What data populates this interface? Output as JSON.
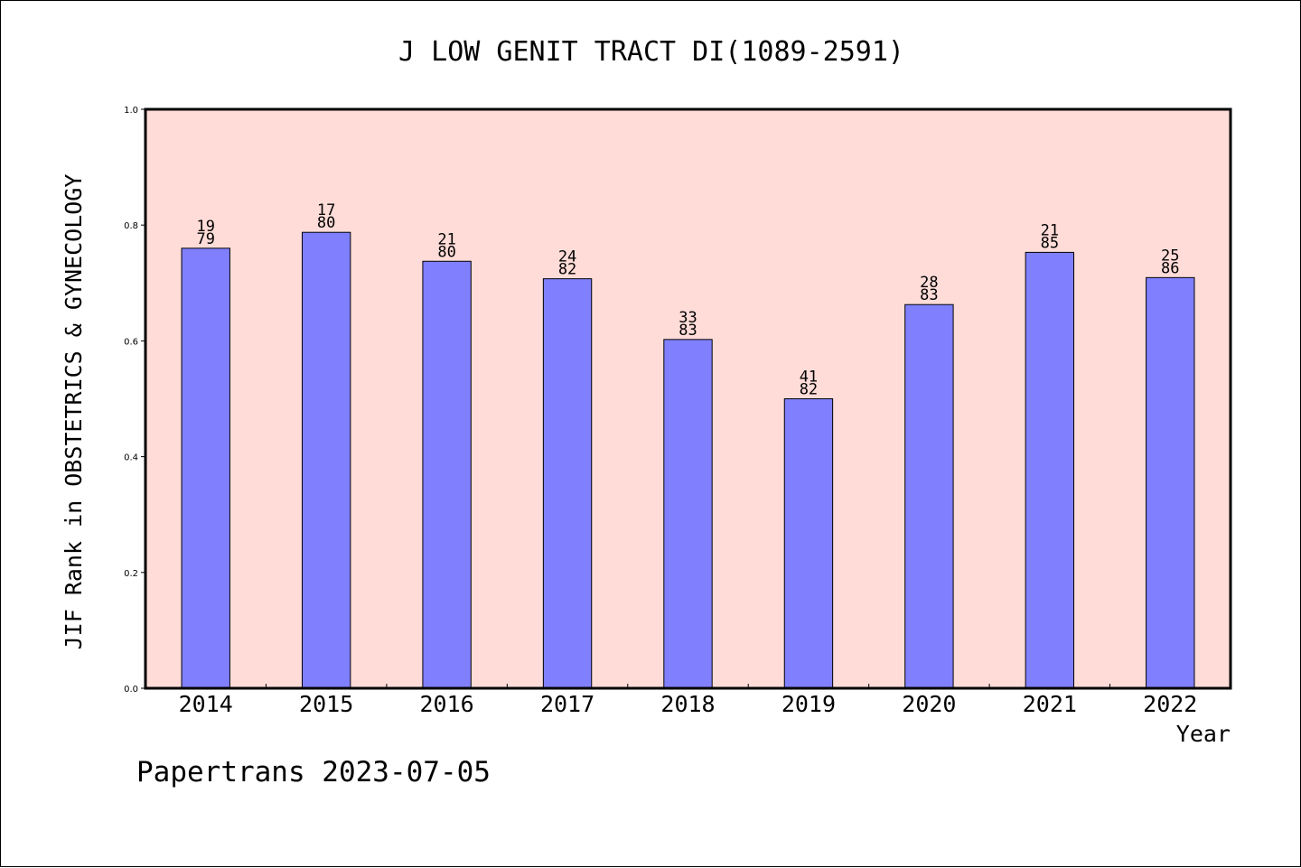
{
  "chart_data": {
    "type": "bar",
    "title": "J LOW GENIT TRACT DI(1089-2591)",
    "xlabel": "Year",
    "ylabel": "JIF Rank in OBSTETRICS & GYNECOLOGY",
    "ylim": [
      0.0,
      1.0
    ],
    "yticks": [
      "0.0",
      "0.2",
      "0.4",
      "0.6",
      "0.8",
      "1.0"
    ],
    "categories": [
      "2014",
      "2015",
      "2016",
      "2017",
      "2018",
      "2019",
      "2020",
      "2021",
      "2022"
    ],
    "values": [
      0.76,
      0.7875,
      0.7375,
      0.7073,
      0.6024,
      0.5,
      0.6627,
      0.7529,
      0.7093
    ],
    "rank": [
      "19",
      "17",
      "21",
      "24",
      "33",
      "41",
      "28",
      "21",
      "25"
    ],
    "total": [
      "79",
      "80",
      "80",
      "82",
      "83",
      "82",
      "83",
      "85",
      "86"
    ],
    "grid": false,
    "colors": {
      "plot_background": "#ffdcd8",
      "bar_fill": "#8080ff",
      "bar_stroke": "#000000"
    }
  },
  "footer": {
    "text": "Papertrans 2023-07-05"
  }
}
